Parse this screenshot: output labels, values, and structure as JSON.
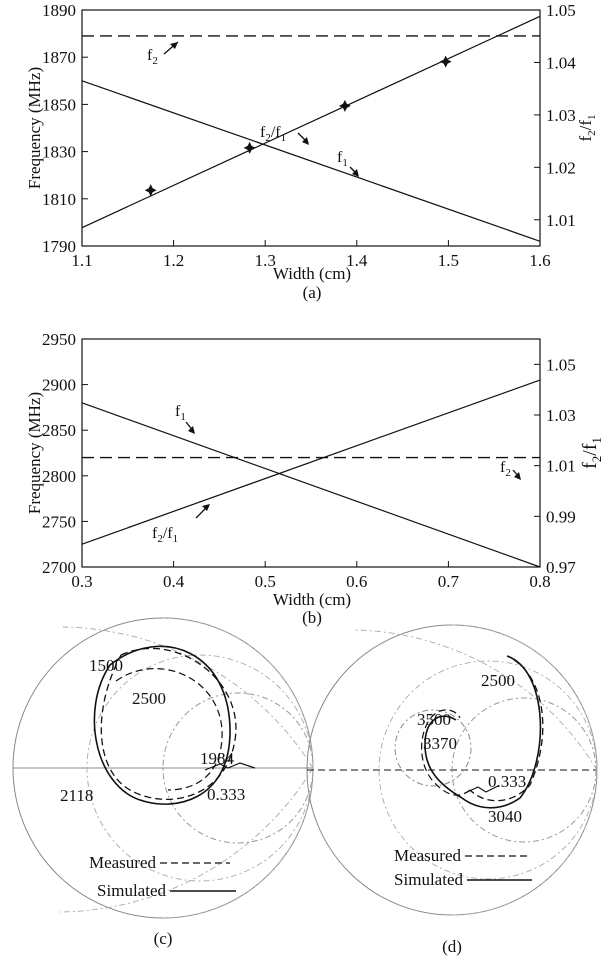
{
  "chart_data": [
    {
      "panel": "(a)",
      "type": "line",
      "xlabel": "Width (cm)",
      "ylabel": "Frequency (MHz)",
      "y2label": "f2/f1",
      "xlim": [
        1.1,
        1.6
      ],
      "ylim": [
        1790,
        1890
      ],
      "y2lim": [
        1.005,
        1.05
      ],
      "xticks": [
        1.1,
        1.2,
        1.3,
        1.4,
        1.5,
        1.6
      ],
      "xtick_labels": [
        "1.1",
        "1.2",
        "1.3",
        "1.4",
        "1.5",
        "1.6"
      ],
      "yticks": [
        1790,
        1810,
        1830,
        1850,
        1870,
        1890
      ],
      "y2ticks": [
        1.01,
        1.02,
        1.03,
        1.04,
        1.05
      ],
      "y2tick_labels": [
        "1.01",
        "1.02",
        "1.03",
        "1.04",
        "1.05"
      ],
      "series": [
        {
          "name": "f1",
          "axis": "left",
          "style": "solid",
          "x": [
            1.1,
            1.6
          ],
          "y": [
            1860,
            1792
          ]
        },
        {
          "name": "f2",
          "axis": "left",
          "style": "dashed",
          "x": [
            1.1,
            1.6
          ],
          "y": [
            1879,
            1879
          ]
        },
        {
          "name": "f2/f1",
          "axis": "right",
          "style": "solid",
          "x": [
            1.1,
            1.6
          ],
          "y": [
            1.0085,
            1.0488
          ]
        },
        {
          "name": "f2/f1 markers",
          "axis": "left",
          "style": "marker",
          "x": [
            1.175,
            1.283,
            1.387,
            1.497
          ],
          "y": [
            1813.6,
            1831.6,
            1849.4,
            1868.1
          ]
        }
      ],
      "annotations": [
        {
          "base": "f",
          "sub": "2",
          "tail": ""
        },
        {
          "base": "f",
          "sub": "2",
          "tail": "/f",
          "sub2": "1"
        },
        {
          "base": "f",
          "sub": "1",
          "tail": ""
        }
      ]
    },
    {
      "panel": "(b)",
      "type": "line",
      "xlabel": "Width (cm)",
      "ylabel": "Frequency (MHz)",
      "y2label": "f2/f1",
      "xlim": [
        0.3,
        0.8
      ],
      "ylim": [
        2700,
        2950
      ],
      "y2lim": [
        0.97,
        1.06
      ],
      "xticks": [
        0.3,
        0.4,
        0.5,
        0.6,
        0.7,
        0.8
      ],
      "xtick_labels": [
        "0.3",
        "0.4",
        "0.5",
        "0.6",
        "0.7",
        "0.8"
      ],
      "yticks": [
        2700,
        2750,
        2800,
        2850,
        2900,
        2950
      ],
      "y2ticks": [
        0.97,
        0.99,
        1.01,
        1.03,
        1.05
      ],
      "y2tick_labels": [
        "0.97",
        "0.99",
        "1.01",
        "1.03",
        "1.05"
      ],
      "series": [
        {
          "name": "f1",
          "axis": "left",
          "style": "solid",
          "x": [
            0.3,
            0.8
          ],
          "y": [
            2880,
            2700
          ]
        },
        {
          "name": "f2",
          "axis": "left",
          "style": "dashed",
          "x": [
            0.3,
            0.8
          ],
          "y": [
            2820,
            2820
          ]
        },
        {
          "name": "f2/f1",
          "axis": "left",
          "style": "solid",
          "x": [
            0.3,
            0.8
          ],
          "y": [
            2725,
            2905
          ]
        }
      ],
      "annotations": [
        {
          "base": "f",
          "sub": "1",
          "tail": ""
        },
        {
          "base": "f",
          "sub": "2",
          "tail": ""
        },
        {
          "base": "f",
          "sub": "2",
          "tail": "/f",
          "sub2": "1"
        }
      ]
    }
  ],
  "captions": [
    "(a)",
    "(b)",
    "(c)",
    "(d)"
  ],
  "smith_c": {
    "caption": "(c)",
    "labels": [
      "1500",
      "2500",
      "1984",
      "2118",
      "0.333"
    ],
    "legend": [
      "Measured",
      "Simulated"
    ]
  },
  "smith_d": {
    "caption": "(d)",
    "labels": [
      "2500",
      "3500",
      "3370",
      "0.333",
      "3040"
    ],
    "legend": [
      "Measured",
      "Simulated"
    ]
  },
  "colors": {
    "ink": "#111111",
    "grid": "#999999"
  }
}
